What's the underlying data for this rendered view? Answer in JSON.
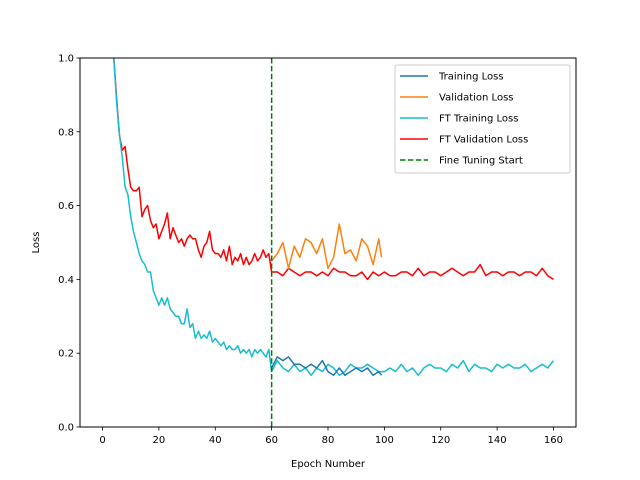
{
  "chart_data": {
    "type": "line",
    "xlabel": "Epoch Number",
    "ylabel": "Loss",
    "xlim": [
      -8,
      168
    ],
    "ylim": [
      0,
      1
    ],
    "xticks": [
      "0",
      "20",
      "40",
      "60",
      "80",
      "100",
      "120",
      "140",
      "160"
    ],
    "yticks": [
      "0.0",
      "0.2",
      "0.4",
      "0.6",
      "0.8",
      "1.0"
    ],
    "grid": false,
    "legend_position": "top-right",
    "vline": {
      "name": "Fine Tuning Start",
      "x": 60,
      "color": "#008000"
    },
    "series": [
      {
        "name": "Training Loss",
        "color": "#1f77b4",
        "x": [
          60,
          62,
          64,
          66,
          68,
          70,
          72,
          74,
          76,
          78,
          80,
          82,
          84,
          86,
          88,
          90,
          92,
          94,
          96,
          98,
          99
        ],
        "y": [
          0.16,
          0.19,
          0.18,
          0.19,
          0.17,
          0.17,
          0.16,
          0.17,
          0.16,
          0.18,
          0.15,
          0.14,
          0.16,
          0.14,
          0.15,
          0.16,
          0.15,
          0.16,
          0.14,
          0.15,
          0.14
        ]
      },
      {
        "name": "Validation Loss",
        "color": "#ff7f0e",
        "x": [
          60,
          62,
          64,
          66,
          68,
          70,
          72,
          74,
          76,
          78,
          80,
          82,
          84,
          86,
          88,
          90,
          92,
          94,
          96,
          98,
          99
        ],
        "y": [
          0.45,
          0.47,
          0.5,
          0.43,
          0.49,
          0.46,
          0.51,
          0.5,
          0.47,
          0.51,
          0.43,
          0.46,
          0.55,
          0.47,
          0.48,
          0.45,
          0.51,
          0.49,
          0.44,
          0.51,
          0.46
        ]
      },
      {
        "name": "FT Training Loss",
        "color": "#17becf",
        "x": [
          4,
          5,
          6,
          7,
          8,
          9,
          10,
          11,
          12,
          13,
          14,
          15,
          16,
          17,
          18,
          19,
          20,
          21,
          22,
          23,
          24,
          25,
          26,
          27,
          28,
          29,
          30,
          31,
          32,
          33,
          34,
          35,
          36,
          37,
          38,
          39,
          40,
          41,
          42,
          43,
          44,
          45,
          46,
          47,
          48,
          49,
          50,
          51,
          52,
          53,
          54,
          55,
          56,
          57,
          58,
          59,
          60,
          62,
          64,
          66,
          68,
          70,
          72,
          74,
          76,
          78,
          80,
          82,
          84,
          86,
          88,
          90,
          92,
          94,
          96,
          98,
          100,
          102,
          104,
          106,
          108,
          110,
          112,
          114,
          116,
          118,
          120,
          122,
          124,
          126,
          128,
          130,
          132,
          134,
          136,
          138,
          140,
          142,
          144,
          146,
          148,
          150,
          152,
          154,
          156,
          158,
          160
        ],
        "y": [
          1.0,
          0.88,
          0.79,
          0.73,
          0.65,
          0.63,
          0.57,
          0.53,
          0.5,
          0.47,
          0.45,
          0.44,
          0.42,
          0.42,
          0.37,
          0.35,
          0.33,
          0.35,
          0.33,
          0.35,
          0.32,
          0.31,
          0.3,
          0.3,
          0.28,
          0.28,
          0.32,
          0.27,
          0.28,
          0.24,
          0.26,
          0.24,
          0.25,
          0.24,
          0.26,
          0.23,
          0.24,
          0.23,
          0.22,
          0.23,
          0.21,
          0.22,
          0.21,
          0.21,
          0.22,
          0.2,
          0.21,
          0.2,
          0.21,
          0.19,
          0.21,
          0.2,
          0.21,
          0.2,
          0.19,
          0.21,
          0.15,
          0.18,
          0.16,
          0.15,
          0.17,
          0.15,
          0.16,
          0.14,
          0.16,
          0.15,
          0.17,
          0.16,
          0.14,
          0.15,
          0.17,
          0.16,
          0.16,
          0.17,
          0.16,
          0.15,
          0.15,
          0.16,
          0.15,
          0.17,
          0.15,
          0.16,
          0.14,
          0.16,
          0.17,
          0.16,
          0.16,
          0.15,
          0.17,
          0.16,
          0.18,
          0.15,
          0.17,
          0.16,
          0.16,
          0.15,
          0.17,
          0.16,
          0.17,
          0.16,
          0.16,
          0.17,
          0.15,
          0.16,
          0.17,
          0.16,
          0.18
        ]
      },
      {
        "name": "FT Validation Loss",
        "color": "#ff0000",
        "x": [
          4,
          5,
          6,
          7,
          8,
          9,
          10,
          11,
          12,
          13,
          14,
          15,
          16,
          17,
          18,
          19,
          20,
          21,
          22,
          23,
          24,
          25,
          26,
          27,
          28,
          29,
          30,
          31,
          32,
          33,
          34,
          35,
          36,
          37,
          38,
          39,
          40,
          41,
          42,
          43,
          44,
          45,
          46,
          47,
          48,
          49,
          50,
          51,
          52,
          53,
          54,
          55,
          56,
          57,
          58,
          59,
          60,
          62,
          64,
          66,
          68,
          70,
          72,
          74,
          76,
          78,
          80,
          82,
          84,
          86,
          88,
          90,
          92,
          94,
          96,
          98,
          100,
          102,
          104,
          106,
          108,
          110,
          112,
          114,
          116,
          118,
          120,
          122,
          124,
          126,
          128,
          130,
          132,
          134,
          136,
          138,
          140,
          142,
          144,
          146,
          148,
          150,
          152,
          154,
          156,
          158,
          160
        ],
        "y": [
          1.0,
          0.89,
          0.79,
          0.75,
          0.76,
          0.7,
          0.65,
          0.64,
          0.64,
          0.65,
          0.57,
          0.59,
          0.6,
          0.56,
          0.54,
          0.55,
          0.51,
          0.53,
          0.55,
          0.58,
          0.51,
          0.54,
          0.52,
          0.5,
          0.51,
          0.49,
          0.51,
          0.52,
          0.51,
          0.51,
          0.48,
          0.46,
          0.49,
          0.5,
          0.53,
          0.48,
          0.47,
          0.47,
          0.46,
          0.48,
          0.45,
          0.49,
          0.44,
          0.46,
          0.45,
          0.47,
          0.44,
          0.46,
          0.44,
          0.45,
          0.47,
          0.45,
          0.46,
          0.48,
          0.46,
          0.47,
          0.42,
          0.42,
          0.41,
          0.43,
          0.42,
          0.41,
          0.42,
          0.42,
          0.41,
          0.42,
          0.41,
          0.43,
          0.42,
          0.42,
          0.41,
          0.41,
          0.42,
          0.4,
          0.42,
          0.41,
          0.42,
          0.41,
          0.41,
          0.42,
          0.42,
          0.41,
          0.43,
          0.41,
          0.42,
          0.42,
          0.41,
          0.42,
          0.43,
          0.42,
          0.41,
          0.42,
          0.42,
          0.44,
          0.41,
          0.42,
          0.42,
          0.41,
          0.42,
          0.42,
          0.41,
          0.42,
          0.42,
          0.41,
          0.43,
          0.41,
          0.4
        ]
      }
    ]
  }
}
